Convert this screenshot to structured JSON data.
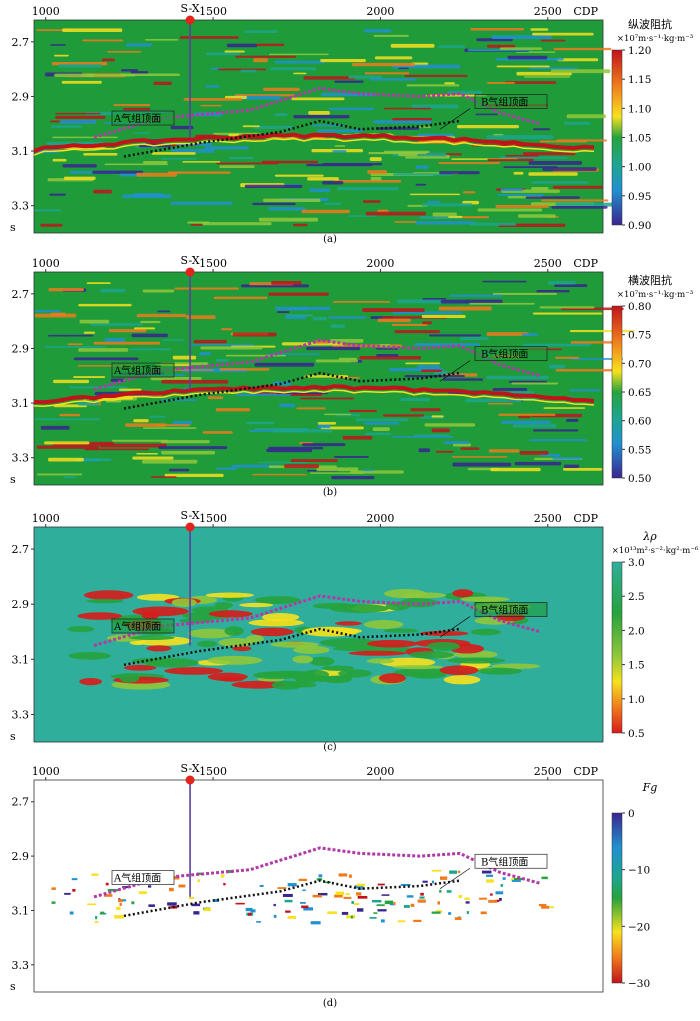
{
  "figure": {
    "panels": [
      {
        "id": "a",
        "caption": "(a)",
        "cdp_ticks": [
          "1000",
          "1500",
          "2000",
          "2500"
        ],
        "axis_label": "CDP",
        "time_ticks": [
          "2.7",
          "2.9",
          "3.1",
          "3.3"
        ],
        "time_unit": "s",
        "well_label": "S-X",
        "horizon_a_label": "A气组顶面",
        "horizon_b_label": "B气组顶面",
        "colorbar_title": "纵波阻抗",
        "colorbar_unit": "×10⁷m·s⁻¹·kg·m⁻³",
        "colorbar_ticks": [
          "1.20",
          "1.15",
          "1.10",
          "1.05",
          "1.00",
          "0.95",
          "0.90"
        ],
        "background": "#1f9b3a"
      },
      {
        "id": "b",
        "caption": "(b)",
        "cdp_ticks": [
          "1000",
          "1500",
          "2000",
          "2500"
        ],
        "axis_label": "CDP",
        "time_ticks": [
          "2.7",
          "2.9",
          "3.1",
          "3.3"
        ],
        "time_unit": "s",
        "well_label": "S-X",
        "horizon_a_label": "A气组顶面",
        "horizon_b_label": "B气组顶面",
        "colorbar_title": "横波阻抗",
        "colorbar_unit": "×10⁷m·s⁻¹·kg·m⁻³",
        "colorbar_ticks": [
          "0.80",
          "0.75",
          "0.70",
          "0.65",
          "0.60",
          "0.55",
          "0.50"
        ],
        "background": "#1f9b3a"
      },
      {
        "id": "c",
        "caption": "(c)",
        "cdp_ticks": [
          "1000",
          "1500",
          "2000",
          "2500"
        ],
        "axis_label": "CDP",
        "time_ticks": [
          "2.7",
          "2.9",
          "3.1",
          "3.3"
        ],
        "time_unit": "s",
        "well_label": "S-X",
        "horizon_a_label": "A气组顶面",
        "horizon_b_label": "B气组顶面",
        "colorbar_title": "λρ",
        "colorbar_unit": "×10¹³m²·s⁻²·kg²·m⁻⁶",
        "colorbar_ticks": [
          "3.0",
          "2.5",
          "2.0",
          "1.5",
          "1.0",
          "0.5"
        ],
        "background": "#2fae9c"
      },
      {
        "id": "d",
        "caption": "(d)",
        "cdp_ticks": [
          "1000",
          "1500",
          "2000",
          "2500"
        ],
        "axis_label": "CDP",
        "time_ticks": [
          "2.7",
          "2.9",
          "3.1",
          "3.3"
        ],
        "time_unit": "s",
        "well_label": "S-X",
        "horizon_a_label": "A气组顶面",
        "horizon_b_label": "B气组顶面",
        "colorbar_title": "Fg",
        "colorbar_unit": "",
        "colorbar_ticks": [
          "0",
          "−10",
          "−20",
          "−30"
        ],
        "background": "#ffffff"
      }
    ]
  },
  "colors": {
    "horizon_a": "#b03aa8",
    "horizon_b_dots": "#111111",
    "well_line": "#5a3fa0",
    "well_marker": "#e3231c"
  }
}
